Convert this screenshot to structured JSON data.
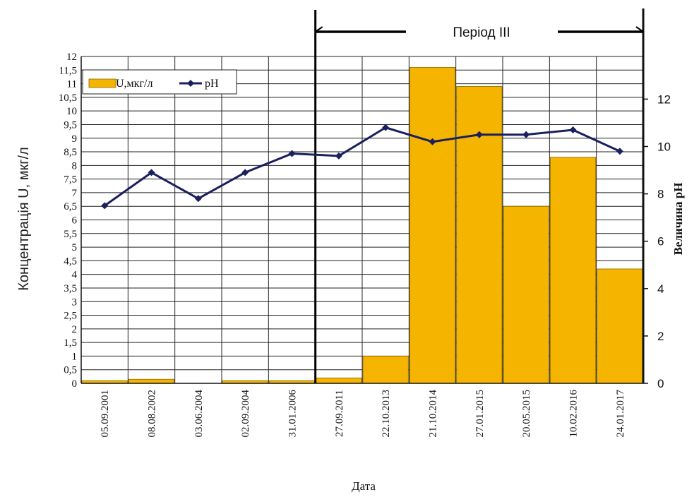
{
  "chart_data": {
    "type": "bar",
    "categories": [
      "05.09.2001",
      "08.08.2002",
      "03.06.2004",
      "02.09.2004",
      "31.01.2006",
      "27.09.2011",
      "22.10.2013",
      "21.10.2014",
      "27.01.2015",
      "20.05.2015",
      "10.02.2016",
      "24.01.2017"
    ],
    "series": [
      {
        "name": "U,мкг/л",
        "type": "bar",
        "axis": "left",
        "color": "#f5b400",
        "values": [
          0.1,
          0.15,
          0,
          0.1,
          0.1,
          0.2,
          1.0,
          11.6,
          10.9,
          6.5,
          8.3,
          4.2
        ]
      },
      {
        "name": "pH",
        "type": "line",
        "axis": "right",
        "color": "#1a1f5e",
        "values": [
          7.5,
          8.9,
          7.8,
          8.9,
          9.7,
          9.6,
          10.8,
          10.2,
          10.5,
          10.5,
          10.7,
          9.8
        ]
      }
    ],
    "xlabel": "Дата",
    "ylabel": "Концентрація  U, мкг/л",
    "y2label": "Величина pH",
    "ylim": [
      0,
      12
    ],
    "y2lim": [
      0,
      13.8
    ],
    "yticks": [
      "0",
      "0,5",
      "1",
      "1,5",
      "2",
      "2,5",
      "3",
      "3,5",
      "4",
      "4,5",
      "5",
      "5,5",
      "6",
      "6,5",
      "7",
      "7,5",
      "8",
      "8,5",
      "9",
      "9,5",
      "10",
      "10,5",
      "11",
      "11,5",
      "12"
    ],
    "y2ticks": [
      "0",
      "2",
      "4",
      "6",
      "8",
      "10",
      "12"
    ],
    "annotation": "Період III",
    "period_start_category": "27.09.2011",
    "legend_position": "top-left",
    "grid": true
  }
}
